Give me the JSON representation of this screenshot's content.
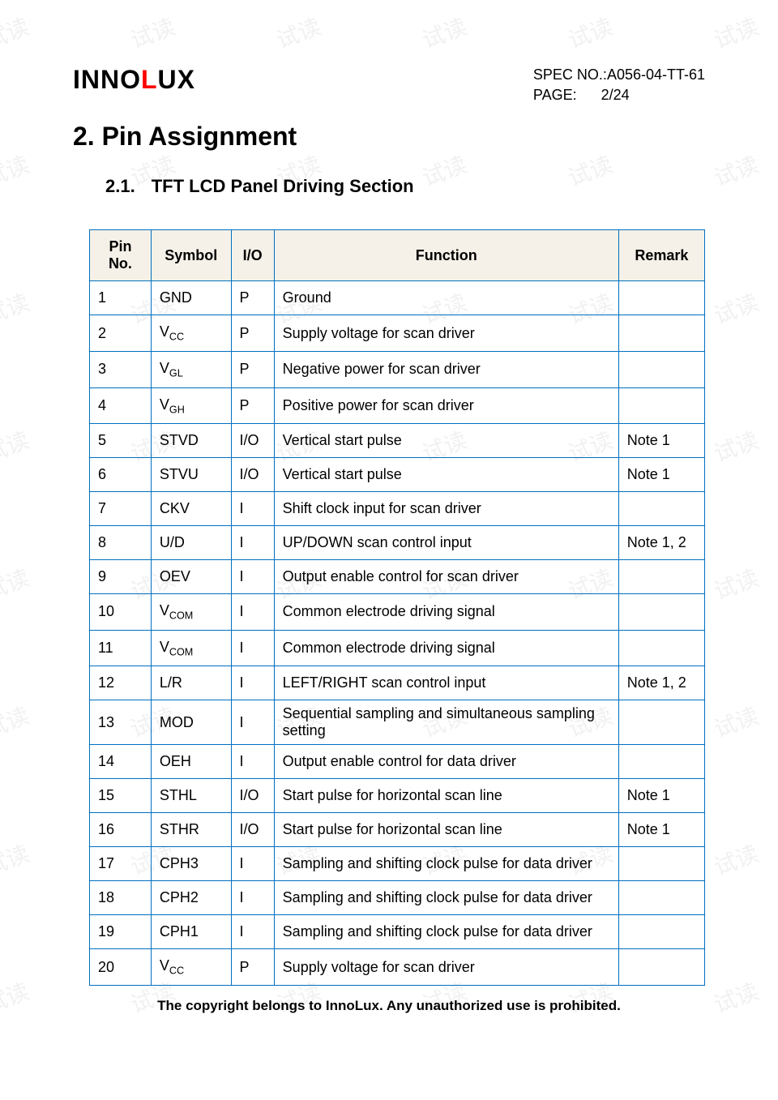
{
  "watermark_text": "试读",
  "logo": {
    "part1": "INNO",
    "part2": "L",
    "part3": "UX"
  },
  "header": {
    "spec_label": "SPEC NO.: ",
    "spec_value": "A056-04-TT-61",
    "page_label": "PAGE:      ",
    "page_value": "2/24"
  },
  "section": {
    "number": "2.",
    "title": "Pin Assignment"
  },
  "subsection": {
    "number": "2.1.",
    "title": "TFT LCD Panel Driving Section"
  },
  "table": {
    "headers": {
      "pin": "Pin No.",
      "symbol": "Symbol",
      "io": "I/O",
      "function": "Function",
      "remark": "Remark"
    },
    "rows": [
      {
        "pin": "1",
        "symbol": "GND",
        "sub": "",
        "io": "P",
        "func": "Ground",
        "remark": ""
      },
      {
        "pin": "2",
        "symbol": "V",
        "sub": "CC",
        "io": "P",
        "func": "Supply voltage for scan driver",
        "remark": ""
      },
      {
        "pin": "3",
        "symbol": "V",
        "sub": "GL",
        "io": "P",
        "func": "Negative power for scan driver",
        "remark": ""
      },
      {
        "pin": "4",
        "symbol": "V",
        "sub": "GH",
        "io": "P",
        "func": "Positive power for scan driver",
        "remark": ""
      },
      {
        "pin": "5",
        "symbol": "STVD",
        "sub": "",
        "io": "I/O",
        "func": "Vertical start pulse",
        "remark": "Note 1"
      },
      {
        "pin": "6",
        "symbol": "STVU",
        "sub": "",
        "io": "I/O",
        "func": "Vertical start pulse",
        "remark": "Note 1"
      },
      {
        "pin": "7",
        "symbol": "CKV",
        "sub": "",
        "io": "I",
        "func": "Shift clock input for scan driver",
        "remark": ""
      },
      {
        "pin": "8",
        "symbol": "U/D",
        "sub": "",
        "io": "I",
        "func": "UP/DOWN scan control input",
        "remark": "Note 1, 2"
      },
      {
        "pin": "9",
        "symbol": "OEV",
        "sub": "",
        "io": "I",
        "func": "Output enable control for scan driver",
        "remark": ""
      },
      {
        "pin": "10",
        "symbol": "V",
        "sub": "COM",
        "io": "I",
        "func": "Common electrode driving signal",
        "remark": ""
      },
      {
        "pin": "11",
        "symbol": "V",
        "sub": "COM",
        "io": "I",
        "func": "Common electrode driving signal",
        "remark": ""
      },
      {
        "pin": "12",
        "symbol": "L/R",
        "sub": "",
        "io": "I",
        "func": "LEFT/RIGHT scan control input",
        "remark": "Note 1, 2"
      },
      {
        "pin": "13",
        "symbol": "MOD",
        "sub": "",
        "io": "I",
        "func": "Sequential sampling and simultaneous sampling setting",
        "remark": ""
      },
      {
        "pin": "14",
        "symbol": "OEH",
        "sub": "",
        "io": "I",
        "func": "Output enable control for data driver",
        "remark": ""
      },
      {
        "pin": "15",
        "symbol": "STHL",
        "sub": "",
        "io": "I/O",
        "func": "Start pulse for horizontal scan line",
        "remark": "Note 1"
      },
      {
        "pin": "16",
        "symbol": "STHR",
        "sub": "",
        "io": "I/O",
        "func": "Start pulse for horizontal scan line",
        "remark": "Note 1"
      },
      {
        "pin": "17",
        "symbol": "CPH3",
        "sub": "",
        "io": "I",
        "func": "Sampling and shifting clock pulse for data driver",
        "remark": ""
      },
      {
        "pin": "18",
        "symbol": "CPH2",
        "sub": "",
        "io": "I",
        "func": "Sampling and shifting clock pulse for data driver",
        "remark": ""
      },
      {
        "pin": "19",
        "symbol": "CPH1",
        "sub": "",
        "io": "I",
        "func": "Sampling and shifting clock pulse for data driver",
        "remark": ""
      },
      {
        "pin": "20",
        "symbol": "V",
        "sub": "CC",
        "io": "P",
        "func": "Supply voltage for scan driver",
        "remark": ""
      }
    ]
  },
  "copyright": "The copyright belongs to InnoLux. Any unauthorized use is prohibited."
}
